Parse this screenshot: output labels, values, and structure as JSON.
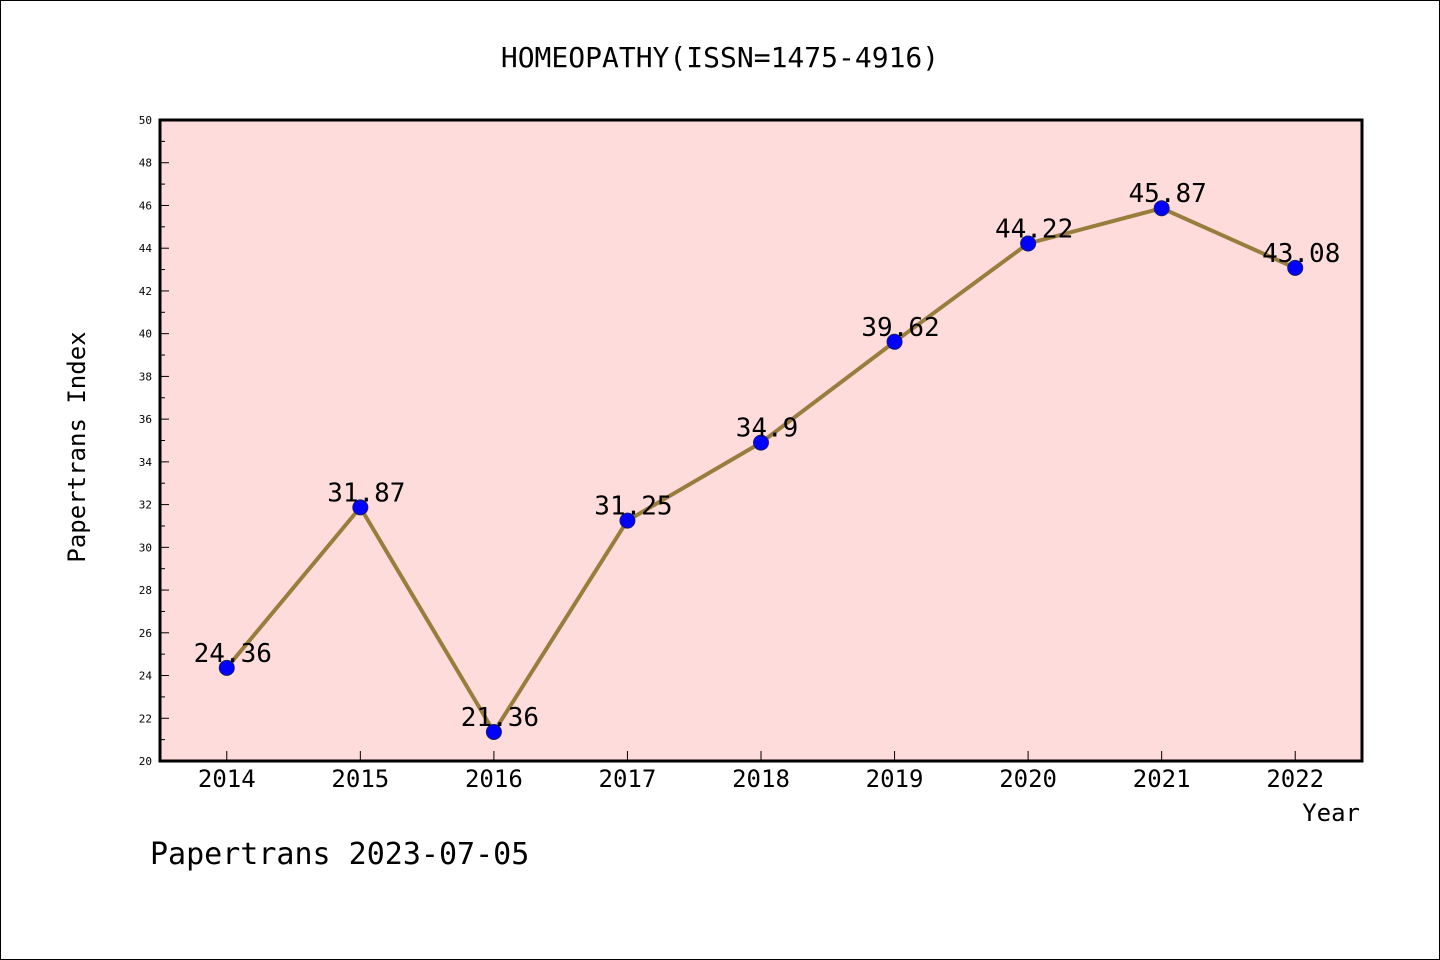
{
  "chart_data": {
    "type": "line",
    "title": "HOMEOPATHY(ISSN=1475-4916)",
    "xlabel": "Year",
    "ylabel": "Papertrans Index",
    "categories": [
      "2014",
      "2015",
      "2016",
      "2017",
      "2018",
      "2019",
      "2020",
      "2021",
      "2022"
    ],
    "series": [
      {
        "values": [
          24.36,
          31.87,
          21.36,
          31.25,
          34.9,
          39.62,
          44.22,
          45.87,
          43.08
        ],
        "labels": [
          "24.36",
          "31.87",
          "21.36",
          "31.25",
          "34.9",
          "39.62",
          "44.22",
          "45.87",
          "43.08"
        ]
      }
    ],
    "ylim": [
      20,
      50
    ],
    "yticks": [
      "20",
      "22",
      "24",
      "26",
      "28",
      "30",
      "32",
      "34",
      "36",
      "38",
      "40",
      "42",
      "44",
      "46",
      "48",
      "50"
    ],
    "grid": false,
    "colors": {
      "plot_background": "#ffdcdc",
      "line": "#9a7d3c",
      "marker": "#0000ff"
    }
  },
  "footer": {
    "text": "Papertrans 2023-07-05"
  }
}
